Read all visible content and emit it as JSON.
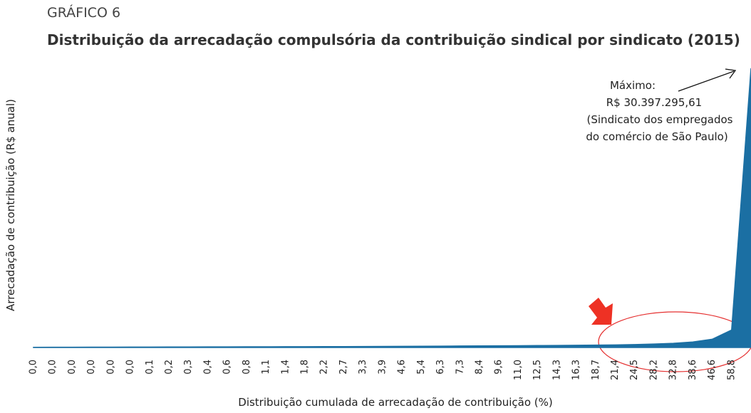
{
  "chart_data": {
    "type": "area",
    "label": "GRÁFICO 6",
    "title": "Distribuição da arrecadação compulsória da contribuição sindical por sindicato (2015)",
    "xlabel": "Distribuição cumulada de arrecadação de contribuição (%)",
    "ylabel": "Arrecadação de contribuição (R$ anual)",
    "annotation": [
      "Máximo:",
      "R$ 30.397.295,61",
      "(Sindicato dos empregados",
      "do comércio de São Paulo)"
    ],
    "color": "#1b6fa3",
    "ylim": [
      0,
      31000000
    ],
    "categories": [
      "0,0",
      "0,0",
      "0,0",
      "0,0",
      "0,0",
      "0,0",
      "0,1",
      "0,2",
      "0,3",
      "0,4",
      "0,6",
      "0,8",
      "1,1",
      "1,4",
      "1,8",
      "2,2",
      "2,7",
      "3,3",
      "3,9",
      "4,6",
      "5,4",
      "6,3",
      "7,3",
      "8,4",
      "9,6",
      "11,0",
      "12,5",
      "14,3",
      "16,3",
      "18,7",
      "21,4",
      "24,5",
      "28,2",
      "32,8",
      "38,6",
      "46,6",
      "58,8",
      null
    ],
    "values": [
      20000,
      25000,
      30000,
      35000,
      40000,
      45000,
      50000,
      55000,
      60000,
      65000,
      70000,
      75000,
      80000,
      85000,
      90000,
      95000,
      100000,
      110000,
      120000,
      130000,
      140000,
      150000,
      160000,
      170000,
      180000,
      195000,
      210000,
      225000,
      240000,
      260000,
      280000,
      320000,
      380000,
      460000,
      600000,
      900000,
      1900000,
      30397295.61
    ]
  }
}
